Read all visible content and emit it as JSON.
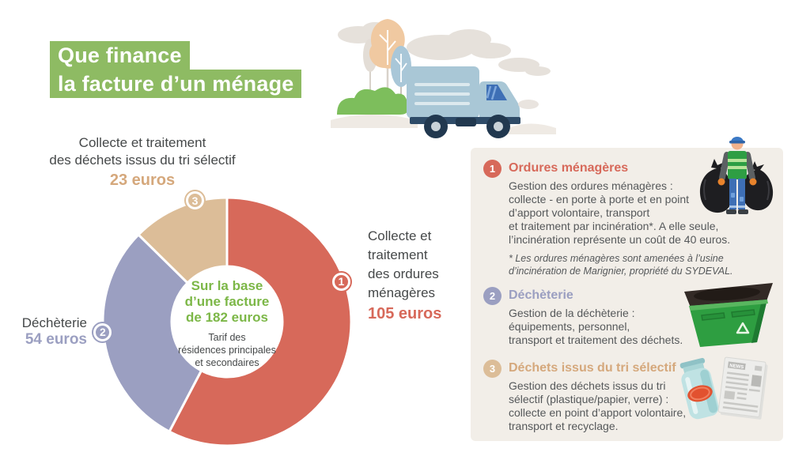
{
  "title": {
    "line1": "Que finance",
    "line2": "la facture d’un ménage"
  },
  "theme": {
    "colors": {
      "green-bg": "#8EBB63",
      "green-text": "#7CB747",
      "red": "#D7695A",
      "purple": "#9B9FC1",
      "tan": "#DCBD98",
      "tan-text": "#D5A87C",
      "text-dark": "#454849",
      "text-gray": "#55585A",
      "panel-bg": "#F2EEE8"
    }
  },
  "chart_data": {
    "type": "pie",
    "donut": true,
    "title": "Que finance la facture d’un ménage",
    "categories": [
      "Collecte et traitement des ordures ménagères",
      "Déchèterie",
      "Collecte et traitement des déchets issus du tri sélectif"
    ],
    "values": [
      105,
      54,
      23
    ],
    "unit": "euros",
    "total": 182,
    "colors": [
      "#D7695A",
      "#9B9FC1",
      "#DCBD98"
    ],
    "start_angle_deg": 0,
    "clockwise": true,
    "badge_labels": [
      "1",
      "2",
      "3"
    ],
    "badge_angles_deg": [
      72,
      264,
      346
    ],
    "center": {
      "primary": "Sur la base\nd’une facture\nde 182 euros",
      "secondary": "Tarif des\nrésidences principales\net secondaires"
    }
  },
  "pie_labels": {
    "seg1": {
      "text": "Collecte et\ntraitement\ndes ordures\nménagères",
      "value": "105 euros"
    },
    "seg2": {
      "text": "Déchèterie",
      "value": "54 euros"
    },
    "seg3": {
      "text": "Collecte et traitement\ndes déchets issus du tri sélectif",
      "value": "23 euros"
    }
  },
  "panel": {
    "newspaper_label": "NEWS",
    "sections": [
      {
        "number": "1",
        "heading": "Ordures ménagères",
        "body": "Gestion des ordures ménagères :\ncollecte - en porte à porte et en point\nd’apport volontaire, transport\net traitement par incinération*. A elle seule,\nl’incinération représente un coût de 40 euros.",
        "footnote": "* Les ordures ménagères sont amenées à l’usine\nd’incinération de Marignier, propriété du SYDEVAL."
      },
      {
        "number": "2",
        "heading": "Déchèterie",
        "body": "Gestion de la déchèterie :\néquipements, personnel,\ntransport et traitement des déchets."
      },
      {
        "number": "3",
        "heading": "Déchets issus du tri sélectif",
        "body": "Gestion des déchets issus du tri\nsélectif (plastique/papier, verre) :\ncollecte en point d’apport volontaire,\ntransport et recyclage."
      }
    ]
  }
}
